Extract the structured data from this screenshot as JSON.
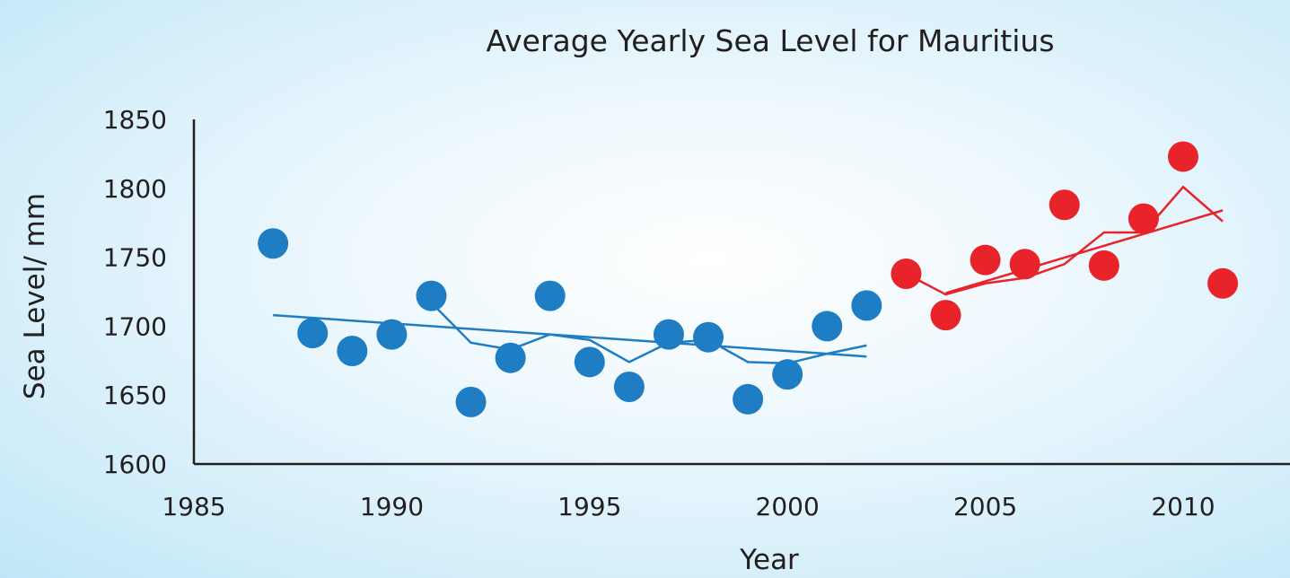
{
  "chart_data": {
    "type": "scatter",
    "title": "Average Yearly Sea Level for Mauritius",
    "xlabel": "Year",
    "ylabel": "Sea Level/ mm",
    "xlim": [
      1985,
      2012.7
    ],
    "ylim": [
      1600,
      1850
    ],
    "xticks": [
      1985,
      1990,
      1995,
      2000,
      2005,
      2010
    ],
    "yticks": [
      1600,
      1650,
      1700,
      1750,
      1800,
      1850
    ],
    "grid": false,
    "series": [
      {
        "color": "#1f7dc4",
        "points": [
          [
            1987,
            1760
          ],
          [
            1988,
            1695
          ],
          [
            1989,
            1682
          ],
          [
            1990,
            1694
          ],
          [
            1991,
            1722
          ],
          [
            1992,
            1645
          ],
          [
            1993,
            1677
          ],
          [
            1994,
            1722
          ],
          [
            1995,
            1674
          ],
          [
            1996,
            1656
          ],
          [
            1997,
            1694
          ],
          [
            1998,
            1692
          ],
          [
            1999,
            1647
          ],
          [
            2000,
            1665
          ],
          [
            2001,
            1700
          ],
          [
            2002,
            1715
          ]
        ],
        "moving_average": [
          [
            1991,
            1717
          ],
          [
            1992,
            1688
          ],
          [
            1993,
            1683
          ],
          [
            1994,
            1694
          ],
          [
            1995,
            1690
          ],
          [
            1996,
            1674
          ],
          [
            1997,
            1688
          ],
          [
            1998,
            1690
          ],
          [
            1999,
            1674
          ],
          [
            2000,
            1673
          ],
          [
            2001,
            1680
          ],
          [
            2002,
            1686
          ]
        ],
        "trend": [
          [
            1987,
            1708
          ],
          [
            2002,
            1678
          ]
        ]
      },
      {
        "color": "#e8232a",
        "points": [
          [
            2003,
            1738
          ],
          [
            2004,
            1708
          ],
          [
            2005,
            1748
          ],
          [
            2006,
            1745
          ],
          [
            2007,
            1788
          ],
          [
            2008,
            1744
          ],
          [
            2009,
            1778
          ],
          [
            2010,
            1823
          ],
          [
            2011,
            1731
          ]
        ],
        "moving_average": [
          [
            2003,
            1738
          ],
          [
            2004,
            1723
          ],
          [
            2005,
            1731
          ],
          [
            2006,
            1735
          ],
          [
            2007,
            1745
          ],
          [
            2008,
            1768
          ],
          [
            2009,
            1768
          ],
          [
            2010,
            1801
          ],
          [
            2011,
            1776
          ]
        ],
        "trend": [
          [
            2004,
            1724
          ],
          [
            2011,
            1784
          ]
        ]
      }
    ]
  }
}
